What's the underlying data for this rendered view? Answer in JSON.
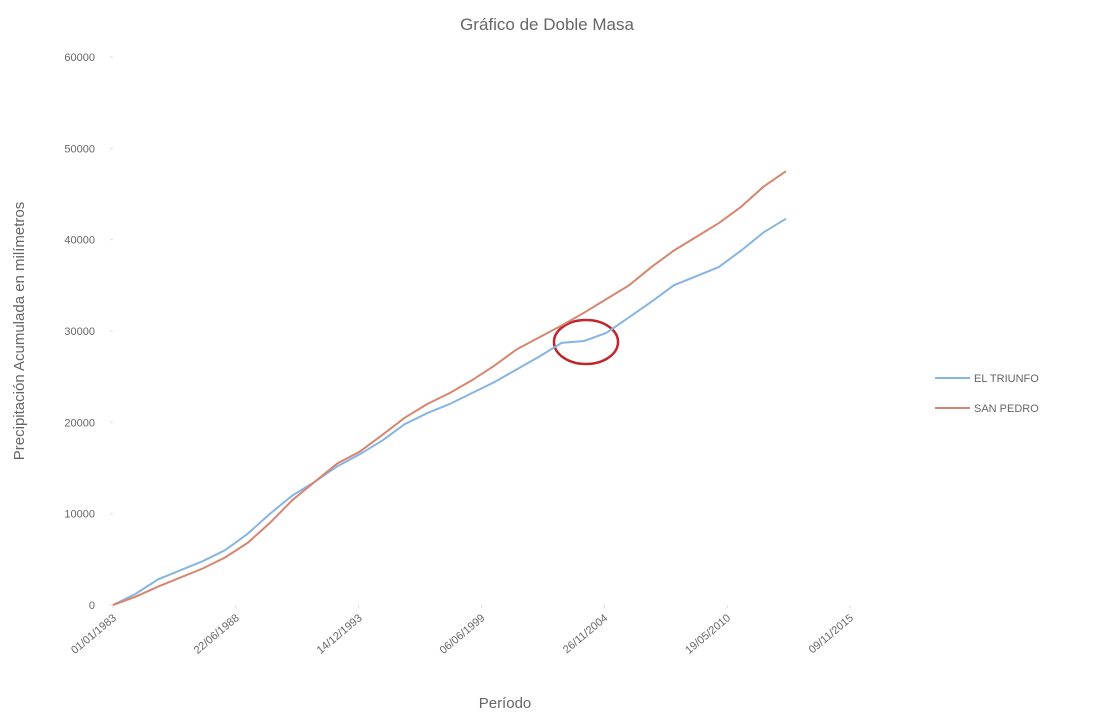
{
  "chart_data": {
    "type": "line",
    "title": "Gráfico de Doble Masa",
    "x_label": "Período",
    "y_label": "Precipitación Acumulada en milímetros",
    "x": [
      "01/01/1983",
      "01/01/1984",
      "01/01/1985",
      "01/01/1986",
      "01/01/1987",
      "01/01/1988",
      "01/01/1989",
      "01/01/1990",
      "01/01/1991",
      "01/01/1992",
      "01/01/1993",
      "01/01/1994",
      "01/01/1995",
      "01/01/1996",
      "01/01/1997",
      "01/01/1998",
      "01/01/1999",
      "01/01/2000",
      "01/01/2001",
      "01/01/2002",
      "01/01/2003",
      "01/01/2004",
      "01/01/2005",
      "01/01/2006",
      "01/01/2007",
      "01/01/2008",
      "01/01/2009",
      "01/01/2010",
      "01/01/2011",
      "01/01/2012",
      "01/01/2013"
    ],
    "series": [
      {
        "name": "EL TRIUNFO",
        "color": "#86b4e3",
        "values": [
          0,
          1200,
          2800,
          3800,
          4800,
          6000,
          7800,
          10000,
          12000,
          13500,
          15200,
          16500,
          18000,
          19800,
          21000,
          22000,
          23200,
          24400,
          25800,
          27200,
          28700,
          28900,
          29800,
          31500,
          33200,
          35000,
          36000,
          37000,
          38800,
          40800,
          42300
        ]
      },
      {
        "name": "SAN PEDRO",
        "color": "#d6866f",
        "values": [
          0,
          900,
          2000,
          3000,
          4000,
          5200,
          6800,
          9000,
          11500,
          13500,
          15500,
          16800,
          18600,
          20500,
          22000,
          23200,
          24600,
          26200,
          28000,
          29300,
          30600,
          32000,
          33500,
          35000,
          37000,
          38800,
          40300,
          41800,
          43600,
          45800,
          47500
        ]
      }
    ],
    "xlim": [
      "01/01/1983",
      "09/11/2015"
    ],
    "xticks": [
      "01/01/1983",
      "22/06/1988",
      "14/12/1993",
      "06/06/1999",
      "26/11/2004",
      "19/05/2010",
      "09/11/2015"
    ],
    "ylim": [
      0,
      60000
    ],
    "yticks": [
      0,
      10000,
      20000,
      30000,
      40000,
      50000,
      60000
    ],
    "legend": "right"
  }
}
